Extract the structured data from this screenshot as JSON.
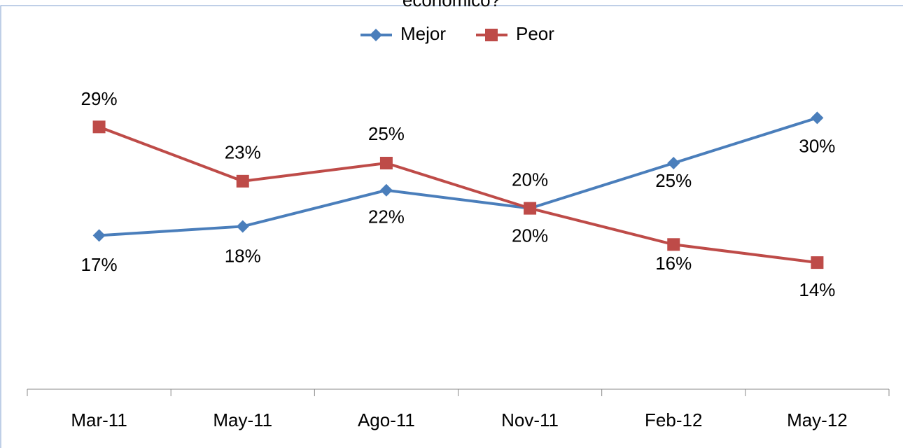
{
  "chart_data": {
    "type": "line",
    "title": "económico?",
    "categories": [
      "Mar-11",
      "May-11",
      "Ago-11",
      "Nov-11",
      "Feb-12",
      "May-12"
    ],
    "series": [
      {
        "name": "Mejor",
        "color": "#4a7ebb",
        "marker": "diamond",
        "values": [
          17,
          18,
          22,
          20,
          25,
          30
        ],
        "value_labels": [
          "17%",
          "18%",
          "22%",
          "20%",
          "25%",
          "30%"
        ]
      },
      {
        "name": "Peor",
        "color": "#be4b48",
        "marker": "square",
        "values": [
          29,
          23,
          25,
          20,
          16,
          14
        ],
        "value_labels": [
          "29%",
          "23%",
          "25%",
          "20%",
          "16%",
          "14%"
        ]
      }
    ],
    "legend": "top"
  }
}
